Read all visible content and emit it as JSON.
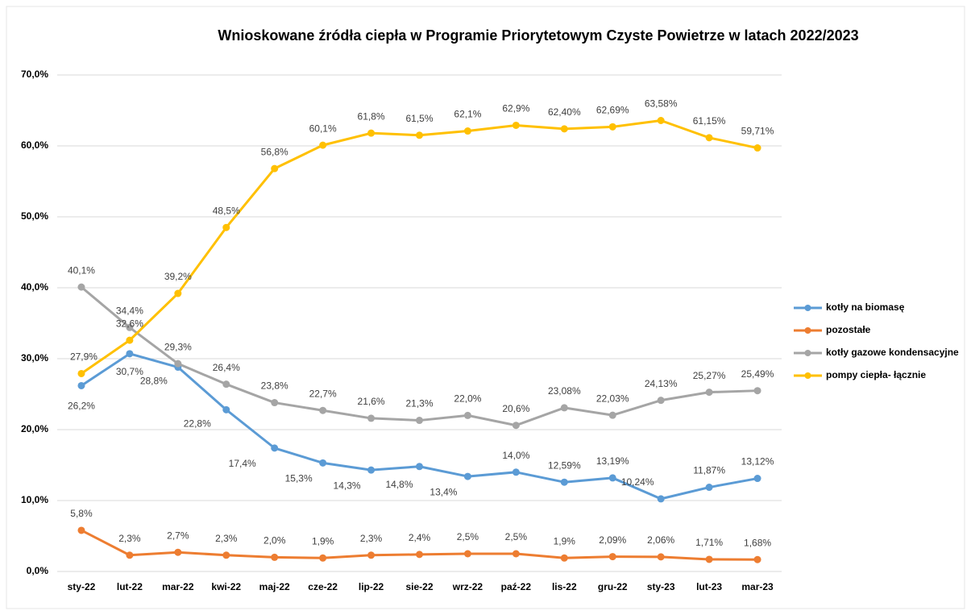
{
  "chart_data": {
    "type": "line",
    "title": "Wnioskowane źródła ciepła w Programie Priorytetowym Czyste Powietrze w latach 2022/2023",
    "categories": [
      "sty-22",
      "lut-22",
      "mar-22",
      "kwi-22",
      "maj-22",
      "cze-22",
      "lip-22",
      "sie-22",
      "wrz-22",
      "paź-22",
      "lis-22",
      "gru-22",
      "sty-23",
      "lut-23",
      "mar-23"
    ],
    "series": [
      {
        "name": "kotły na biomasę",
        "color": "#5b9bd5",
        "values": [
          26.2,
          30.7,
          28.8,
          22.8,
          17.4,
          15.3,
          14.3,
          14.8,
          13.4,
          14.0,
          12.59,
          13.19,
          10.24,
          11.87,
          13.12
        ],
        "value_labels": [
          "26,2%",
          "30,7%",
          "28,8%",
          "22,8%",
          "17,4%",
          "15,3%",
          "14,3%",
          "14,8%",
          "13,4%",
          "14,0%",
          "12,59%",
          "13,19%",
          "10,24%",
          "11,87%",
          "13,12%"
        ]
      },
      {
        "name": "pozostałe",
        "color": "#ed7d31",
        "values": [
          5.8,
          2.3,
          2.7,
          2.3,
          2.0,
          1.9,
          2.3,
          2.4,
          2.5,
          2.5,
          1.9,
          2.09,
          2.06,
          1.71,
          1.68
        ],
        "value_labels": [
          "5,8%",
          "2,3%",
          "2,7%",
          "2,3%",
          "2,0%",
          "1,9%",
          "2,3%",
          "2,4%",
          "2,5%",
          "2,5%",
          "1,9%",
          "2,09%",
          "2,06%",
          "1,71%",
          "1,68%"
        ]
      },
      {
        "name": "kotły gazowe kondensacyjne",
        "color": "#a5a5a5",
        "values": [
          40.1,
          34.4,
          29.3,
          26.4,
          23.8,
          22.7,
          21.6,
          21.3,
          22.0,
          20.6,
          23.08,
          22.03,
          24.13,
          25.27,
          25.49
        ],
        "value_labels": [
          "40,1%",
          "34,4%",
          "29,3%",
          "26,4%",
          "23,8%",
          "22,7%",
          "21,6%",
          "21,3%",
          "22,0%",
          "20,6%",
          "23,08%",
          "22,03%",
          "24,13%",
          "25,27%",
          "25,49%"
        ]
      },
      {
        "name": "pompy ciepła- łącznie",
        "color": "#ffc000",
        "values": [
          27.9,
          32.6,
          39.2,
          48.5,
          56.8,
          60.1,
          61.8,
          61.5,
          62.1,
          62.9,
          62.4,
          62.69,
          63.58,
          61.15,
          59.71
        ],
        "value_labels": [
          "27,9%",
          "32,6%",
          "39,2%",
          "48,5%",
          "56,8%",
          "60,1%",
          "61,8%",
          "61,5%",
          "62,1%",
          "62,9%",
          "62,40%",
          "62,69%",
          "63,58%",
          "61,15%",
          "59,71%"
        ]
      }
    ],
    "ylim": [
      0,
      70
    ],
    "yticks": [
      {
        "value": 0,
        "label": "0,0%"
      },
      {
        "value": 10,
        "label": "10,0%"
      },
      {
        "value": 20,
        "label": "20,0%"
      },
      {
        "value": 30,
        "label": "30,0%"
      },
      {
        "value": 40,
        "label": "40,0%"
      },
      {
        "value": 50,
        "label": "50,0%"
      },
      {
        "value": 60,
        "label": "60,0%"
      },
      {
        "value": 70,
        "label": "70,0%"
      }
    ],
    "grid": true
  }
}
